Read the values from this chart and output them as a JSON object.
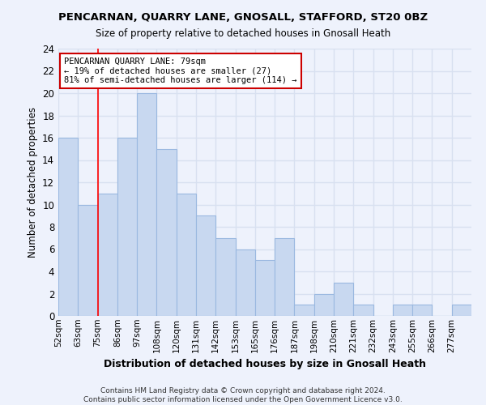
{
  "title": "PENCARNAN, QUARRY LANE, GNOSALL, STAFFORD, ST20 0BZ",
  "subtitle": "Size of property relative to detached houses in Gnosall Heath",
  "xlabel": "Distribution of detached houses by size in Gnosall Heath",
  "ylabel": "Number of detached properties",
  "bin_labels": [
    "52sqm",
    "63sqm",
    "75sqm",
    "86sqm",
    "97sqm",
    "108sqm",
    "120sqm",
    "131sqm",
    "142sqm",
    "153sqm",
    "165sqm",
    "176sqm",
    "187sqm",
    "198sqm",
    "210sqm",
    "221sqm",
    "232sqm",
    "243sqm",
    "255sqm",
    "266sqm",
    "277sqm"
  ],
  "counts": [
    16,
    10,
    11,
    16,
    20,
    15,
    11,
    9,
    7,
    6,
    5,
    7,
    1,
    2,
    3,
    1,
    0,
    1,
    1,
    0,
    1
  ],
  "bar_color": "#c8d8f0",
  "bar_edge_color": "#9ab8e0",
  "reference_line_x": 2,
  "reference_line_color": "red",
  "annotation_title": "PENCARNAN QUARRY LANE: 79sqm",
  "annotation_line1": "← 19% of detached houses are smaller (27)",
  "annotation_line2": "81% of semi-detached houses are larger (114) →",
  "box_edge_color": "#cc0000",
  "ylim": [
    0,
    24
  ],
  "yticks": [
    0,
    2,
    4,
    6,
    8,
    10,
    12,
    14,
    16,
    18,
    20,
    22,
    24
  ],
  "footer1": "Contains HM Land Registry data © Crown copyright and database right 2024.",
  "footer2": "Contains public sector information licensed under the Open Government Licence v3.0.",
  "background_color": "#eef2fc",
  "grid_color": "#d8e0f0",
  "title_fontsize": 9.5,
  "subtitle_fontsize": 8.5
}
